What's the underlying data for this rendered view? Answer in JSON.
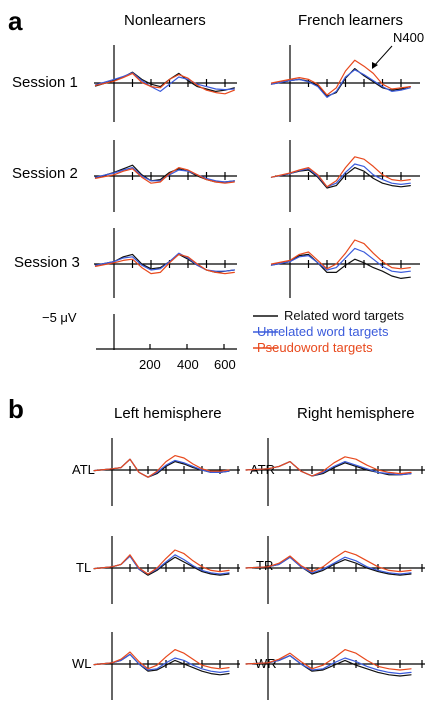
{
  "colors": {
    "related": "#111111",
    "unrelated": "#3b5bdb",
    "pseudoword": "#e8491d"
  },
  "panel_a": {
    "letter": "a",
    "col_titles": [
      "Nonlearners",
      "French learners"
    ],
    "row_labels": [
      "Session 1",
      "Session 2",
      "Session 3"
    ],
    "annotation": "N400",
    "scale_label": "−5 μV",
    "time_ticks": [
      "200",
      "400",
      "600"
    ]
  },
  "panel_b": {
    "letter": "b",
    "col_titles": [
      "Left hemisphere",
      "Right hemisphere"
    ],
    "electrodes": [
      [
        "ATL",
        "ATR"
      ],
      [
        "TL",
        "TR"
      ],
      [
        "WL",
        "WR"
      ]
    ]
  },
  "legend": [
    "Related word targets",
    "Unrelated word targets",
    "Pseudoword targets"
  ],
  "chart_data": {
    "type": "line",
    "xlabel": "",
    "ylabel": "",
    "x_ticks": [
      200,
      400,
      600
    ],
    "y_scale": "−5 μV (negative plotted up)",
    "series_names": [
      "Related word targets",
      "Unrelated word targets",
      "Pseudoword targets"
    ],
    "note": "ERP waveforms read approximately from the figure; amplitude in μV, negative up",
    "x": [
      -100,
      0,
      50,
      100,
      150,
      200,
      250,
      300,
      350,
      400,
      450,
      500,
      550,
      600,
      650
    ],
    "panels": [
      {
        "panel": "a",
        "group": "Nonlearners",
        "row": "Session 1",
        "series": [
          {
            "values": [
              0.5,
              -0.4,
              -1.0,
              -1.8,
              -0.6,
              0.2,
              0.6,
              -0.6,
              -1.6,
              -0.4,
              0.6,
              1.0,
              1.4,
              1.2,
              0.8
            ]
          },
          {
            "values": [
              0.3,
              -0.6,
              -1.1,
              -1.7,
              -0.4,
              0.6,
              1.4,
              0.2,
              -1.0,
              -0.6,
              0.2,
              0.6,
              1.0,
              1.1,
              1.0
            ]
          },
          {
            "values": [
              0.4,
              -0.3,
              -0.9,
              -1.6,
              -0.1,
              0.6,
              0.8,
              -0.6,
              -1.4,
              -0.8,
              0.4,
              1.2,
              1.6,
              1.8,
              1.2
            ]
          }
        ]
      },
      {
        "panel": "a",
        "group": "French learners",
        "row": "Session 1",
        "series": [
          {
            "values": [
              0.2,
              -0.4,
              -0.6,
              -0.3,
              0.4,
              2.2,
              1.6,
              -0.8,
              -2.4,
              -1.2,
              -0.2,
              0.8,
              1.2,
              1.0,
              0.6
            ]
          },
          {
            "values": [
              0.2,
              -0.4,
              -0.6,
              -0.2,
              0.6,
              2.4,
              1.4,
              -1.0,
              -2.2,
              -1.4,
              -0.4,
              0.6,
              1.4,
              1.2,
              0.8
            ]
          },
          {
            "values": [
              0.0,
              -0.6,
              -0.9,
              -0.6,
              0.2,
              2.0,
              0.8,
              -2.0,
              -3.8,
              -2.8,
              -1.6,
              0.2,
              1.0,
              0.8,
              0.6
            ]
          }
        ]
      },
      {
        "panel": "a",
        "group": "Nonlearners",
        "row": "Session 2",
        "series": [
          {
            "values": [
              0.3,
              -0.6,
              -1.2,
              -1.8,
              -0.2,
              0.8,
              0.6,
              -0.6,
              -1.2,
              -0.8,
              0.0,
              0.6,
              1.0,
              1.0,
              0.8
            ]
          },
          {
            "values": [
              0.2,
              -0.5,
              -1.0,
              -1.4,
              0.0,
              0.8,
              0.8,
              -0.2,
              -1.0,
              -0.8,
              -0.2,
              0.4,
              0.8,
              1.0,
              0.8
            ]
          },
          {
            "values": [
              0.4,
              -0.2,
              -0.8,
              -1.2,
              0.2,
              1.2,
              1.0,
              -0.4,
              -1.4,
              -1.0,
              -0.2,
              0.6,
              1.0,
              1.2,
              1.0
            ]
          }
        ]
      },
      {
        "panel": "a",
        "group": "French learners",
        "row": "Session 2",
        "series": [
          {
            "values": [
              0.2,
              -0.4,
              -0.8,
              -1.0,
              0.2,
              2.0,
              1.6,
              -0.2,
              -1.4,
              -0.8,
              0.4,
              1.2,
              1.6,
              1.8,
              1.6
            ]
          },
          {
            "values": [
              0.2,
              -0.4,
              -0.9,
              -1.2,
              0.0,
              1.8,
              1.2,
              -0.6,
              -2.0,
              -1.6,
              -0.2,
              0.6,
              1.2,
              1.4,
              1.2
            ]
          },
          {
            "values": [
              0.2,
              -0.5,
              -1.0,
              -1.4,
              -0.2,
              1.8,
              0.8,
              -1.4,
              -3.2,
              -2.8,
              -1.6,
              -0.2,
              0.6,
              0.8,
              0.6
            ]
          }
        ]
      },
      {
        "panel": "a",
        "group": "Nonlearners",
        "row": "Session 3",
        "series": [
          {
            "values": [
              0.2,
              -0.4,
              -1.2,
              -1.6,
              0.0,
              0.8,
              0.6,
              -0.4,
              -1.6,
              -0.8,
              0.2,
              1.0,
              1.4,
              1.2,
              1.0
            ]
          },
          {
            "values": [
              0.2,
              -0.4,
              -1.0,
              -1.2,
              0.2,
              1.0,
              0.8,
              -0.4,
              -1.8,
              -1.0,
              0.2,
              1.0,
              1.2,
              1.2,
              1.0
            ]
          },
          {
            "values": [
              0.4,
              -0.2,
              -0.6,
              -0.8,
              0.6,
              1.6,
              1.4,
              -0.2,
              -1.6,
              -1.2,
              0.0,
              1.0,
              1.4,
              1.6,
              1.4
            ]
          }
        ]
      },
      {
        "panel": "a",
        "group": "French learners",
        "row": "Session 3",
        "series": [
          {
            "values": [
              0.2,
              -0.4,
              -1.4,
              -1.6,
              -0.2,
              1.4,
              1.4,
              0.2,
              -0.8,
              -0.2,
              0.6,
              1.2,
              2.0,
              2.4,
              2.2
            ]
          },
          {
            "values": [
              0.2,
              -0.4,
              -1.2,
              -1.4,
              -0.2,
              1.0,
              0.6,
              -1.0,
              -2.6,
              -2.0,
              -0.8,
              0.4,
              1.2,
              1.4,
              1.2
            ]
          },
          {
            "values": [
              0.0,
              -0.6,
              -1.6,
              -2.0,
              -0.6,
              0.8,
              0.0,
              -1.8,
              -4.0,
              -3.4,
              -1.8,
              -0.4,
              0.6,
              0.8,
              0.6
            ]
          }
        ]
      },
      {
        "panel": "b",
        "group": "Left hemisphere",
        "row": "ATL",
        "series": [
          {
            "values": [
              0.1,
              -0.2,
              -0.4,
              -1.8,
              0.4,
              1.2,
              0.6,
              -0.6,
              -1.4,
              -1.0,
              -0.4,
              0.0,
              0.4,
              0.4,
              0.2
            ]
          },
          {
            "values": [
              0.1,
              -0.2,
              -0.4,
              -1.8,
              0.4,
              1.2,
              0.4,
              -0.8,
              -1.6,
              -1.2,
              -0.6,
              0.0,
              0.4,
              0.4,
              0.2
            ]
          },
          {
            "values": [
              0.1,
              -0.2,
              -0.4,
              -1.8,
              0.4,
              1.2,
              0.2,
              -1.4,
              -2.4,
              -2.0,
              -1.0,
              -0.2,
              0.2,
              0.2,
              0.0
            ]
          }
        ]
      },
      {
        "panel": "b",
        "group": "Right hemisphere",
        "row": "ATR",
        "series": [
          {
            "values": [
              0.0,
              -0.2,
              -0.6,
              -1.4,
              0.2,
              1.0,
              0.6,
              -0.4,
              -1.2,
              -0.6,
              0.0,
              0.4,
              0.8,
              0.8,
              0.6
            ]
          },
          {
            "values": [
              0.0,
              -0.2,
              -0.6,
              -1.4,
              0.2,
              1.0,
              0.4,
              -0.6,
              -1.4,
              -0.8,
              -0.2,
              0.4,
              0.6,
              0.8,
              0.6
            ]
          },
          {
            "values": [
              0.0,
              -0.2,
              -0.6,
              -1.4,
              0.2,
              1.0,
              0.2,
              -1.2,
              -2.2,
              -1.8,
              -0.8,
              0.0,
              0.4,
              0.6,
              0.4
            ]
          }
        ]
      },
      {
        "panel": "b",
        "group": "Left hemisphere",
        "row": "TL",
        "series": [
          {
            "values": [
              0.1,
              -0.2,
              -0.6,
              -2.0,
              0.2,
              1.2,
              0.4,
              -0.8,
              -1.8,
              -1.0,
              -0.2,
              0.6,
              1.0,
              1.2,
              1.0
            ]
          },
          {
            "values": [
              0.1,
              -0.2,
              -0.6,
              -2.0,
              0.2,
              1.0,
              0.2,
              -1.0,
              -2.2,
              -1.4,
              -0.4,
              0.4,
              0.8,
              1.0,
              0.8
            ]
          },
          {
            "values": [
              0.1,
              -0.2,
              -0.6,
              -2.2,
              0.0,
              1.0,
              0.0,
              -1.6,
              -3.0,
              -2.4,
              -1.2,
              -0.2,
              0.4,
              0.6,
              0.4
            ]
          }
        ]
      },
      {
        "panel": "b",
        "group": "Right hemisphere",
        "row": "TR",
        "series": [
          {
            "values": [
              0.0,
              -0.2,
              -0.6,
              -1.8,
              -0.2,
              1.0,
              0.4,
              -0.6,
              -1.4,
              -0.8,
              0.0,
              0.6,
              1.0,
              1.2,
              1.0
            ]
          },
          {
            "values": [
              0.0,
              -0.2,
              -0.6,
              -1.8,
              -0.2,
              0.8,
              0.2,
              -0.8,
              -1.8,
              -1.2,
              -0.2,
              0.4,
              0.8,
              1.0,
              0.8
            ]
          },
          {
            "values": [
              0.0,
              -0.2,
              -0.8,
              -2.0,
              -0.4,
              0.6,
              -0.2,
              -1.6,
              -2.8,
              -2.2,
              -1.2,
              -0.2,
              0.4,
              0.6,
              0.4
            ]
          }
        ]
      },
      {
        "panel": "b",
        "group": "Left hemisphere",
        "row": "WL",
        "series": [
          {
            "values": [
              0.1,
              -0.2,
              -0.6,
              -1.6,
              0.0,
              1.2,
              1.0,
              0.2,
              -0.6,
              0.0,
              0.6,
              1.2,
              1.6,
              1.8,
              1.6
            ]
          },
          {
            "values": [
              0.1,
              -0.2,
              -0.6,
              -1.6,
              0.0,
              1.0,
              0.8,
              -0.2,
              -1.0,
              -0.6,
              0.2,
              0.8,
              1.2,
              1.4,
              1.2
            ]
          },
          {
            "values": [
              0.1,
              -0.2,
              -0.8,
              -2.0,
              -0.4,
              0.8,
              0.2,
              -1.2,
              -2.4,
              -1.8,
              -0.8,
              0.2,
              0.6,
              0.8,
              0.6
            ]
          }
        ]
      },
      {
        "panel": "b",
        "group": "Right hemisphere",
        "row": "WR",
        "series": [
          {
            "values": [
              0.0,
              -0.2,
              -0.6,
              -1.4,
              0.0,
              1.2,
              1.0,
              0.2,
              -0.6,
              0.2,
              0.8,
              1.4,
              1.8,
              2.0,
              1.8
            ]
          },
          {
            "values": [
              0.0,
              -0.2,
              -0.6,
              -1.4,
              0.0,
              1.0,
              0.8,
              -0.2,
              -1.0,
              -0.4,
              0.4,
              1.0,
              1.4,
              1.6,
              1.4
            ]
          },
          {
            "values": [
              0.0,
              -0.2,
              -0.8,
              -1.8,
              -0.4,
              0.8,
              0.2,
              -1.0,
              -2.4,
              -1.8,
              -0.6,
              0.4,
              0.8,
              1.0,
              0.8
            ]
          }
        ]
      }
    ]
  }
}
